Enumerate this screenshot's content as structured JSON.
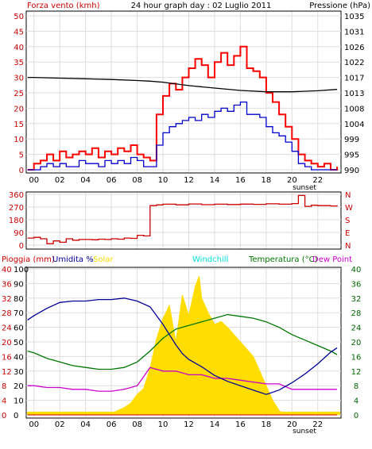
{
  "header": {
    "left_label": "Forza vento (kmh)",
    "title": "24 hour graph day : 02 Luglio 2011",
    "right_label": "Pressione (hPa)"
  },
  "colors": {
    "gust": "#ff0000",
    "wind": "#0000cc",
    "pressure": "#000000",
    "direction": "#cc0000",
    "rain": "#cc0000",
    "humidity": "#000099",
    "solar": "#ffdd00",
    "windchill": "#00dddd",
    "temperature": "#007700",
    "dewpoint": "#cc00cc",
    "axis_red": "#cc0000",
    "axis_green": "#006600",
    "grid": "#dddddd"
  },
  "x_axis": {
    "tick_labels": [
      "00",
      "02",
      "04",
      "06",
      "08",
      "10",
      "12",
      "14",
      "16",
      "18",
      "20",
      "22"
    ],
    "sunset_label": "sunset"
  },
  "chart_data": [
    {
      "type": "line",
      "name": "wind_pressure",
      "x_range": [
        -0.6,
        23.8
      ],
      "y_left": {
        "ticks": [
          "0",
          "5",
          "10",
          "15",
          "20",
          "25",
          "30",
          "35",
          "40",
          "45",
          "50"
        ],
        "range": [
          0,
          50
        ]
      },
      "y_right": {
        "ticks": [
          "990",
          "995",
          "999",
          "1004",
          "1008",
          "1013",
          "1017",
          "1022",
          "1026",
          "1031",
          "1035"
        ],
        "range": [
          990,
          1035
        ]
      },
      "series": [
        {
          "key": "gust",
          "axis": "left",
          "x": [
            -0.5,
            0,
            0.5,
            1,
            1.5,
            2,
            2.5,
            3,
            3.5,
            4,
            4.5,
            5,
            5.5,
            6,
            6.5,
            7,
            7.5,
            8,
            8.5,
            9,
            9.5,
            10,
            10.5,
            11,
            11.5,
            12,
            12.5,
            13,
            13.5,
            14,
            14.5,
            15,
            15.5,
            16,
            16.5,
            17,
            17.5,
            18,
            18.5,
            19,
            19.5,
            20,
            20.5,
            21,
            21.5,
            22,
            22.5,
            23,
            23.5
          ],
          "values": [
            0,
            2,
            3,
            5,
            3,
            6,
            4,
            5,
            6,
            5,
            7,
            4,
            6,
            5,
            7,
            6,
            8,
            5,
            4,
            3,
            18,
            24,
            28,
            26,
            30,
            33,
            36,
            34,
            30,
            35,
            38,
            34,
            37,
            40,
            33,
            32,
            30,
            25,
            22,
            18,
            14,
            10,
            5,
            3,
            2,
            1,
            2,
            0,
            1
          ]
        },
        {
          "key": "wind",
          "axis": "left",
          "x": [
            -0.5,
            0,
            0.5,
            1,
            1.5,
            2,
            2.5,
            3,
            3.5,
            4,
            4.5,
            5,
            5.5,
            6,
            6.5,
            7,
            7.5,
            8,
            8.5,
            9,
            9.5,
            10,
            10.5,
            11,
            11.5,
            12,
            12.5,
            13,
            13.5,
            14,
            14.5,
            15,
            15.5,
            16,
            16.5,
            17,
            17.5,
            18,
            18.5,
            19,
            19.5,
            20,
            20.5,
            21,
            21.5,
            22,
            22.5,
            23,
            23.5
          ],
          "values": [
            0,
            0,
            1,
            2,
            1,
            2,
            1,
            1,
            3,
            2,
            2,
            1,
            3,
            2,
            3,
            2,
            4,
            3,
            1,
            1,
            8,
            12,
            14,
            15,
            16,
            17,
            16,
            18,
            17,
            19,
            20,
            19,
            21,
            22,
            18,
            18,
            17,
            14,
            12,
            11,
            9,
            6,
            2,
            1,
            0,
            0,
            0,
            0,
            0
          ]
        },
        {
          "key": "pressure",
          "axis": "right",
          "x": [
            -0.5,
            0,
            2,
            4,
            6,
            8,
            9,
            10,
            12,
            14,
            16,
            18,
            20,
            22,
            23.5
          ],
          "values": [
            1017,
            1017,
            1016.8,
            1016.6,
            1016.4,
            1016.1,
            1015.9,
            1015.6,
            1014.6,
            1013.9,
            1013.2,
            1012.8,
            1012.8,
            1013.1,
            1013.5
          ]
        }
      ]
    },
    {
      "type": "line",
      "name": "wind_direction",
      "x_range": [
        -0.6,
        23.8
      ],
      "y_left": {
        "ticks": [
          "0",
          "90",
          "180",
          "270",
          "360"
        ],
        "range": [
          0,
          360
        ]
      },
      "y_right": {
        "ticks": [
          "N",
          "E",
          "S",
          "W",
          "N"
        ]
      },
      "series": [
        {
          "key": "direction",
          "x": [
            -0.5,
            0,
            0.5,
            1,
            1.5,
            2,
            2.5,
            3,
            3.5,
            4,
            4.5,
            5,
            5.5,
            6,
            6.5,
            7,
            7.5,
            8,
            8.5,
            9,
            9.5,
            10,
            11,
            12,
            13,
            14,
            15,
            16,
            17,
            18,
            19,
            20,
            20.5,
            21,
            21.5,
            22,
            23,
            23.5
          ],
          "values": [
            50,
            55,
            45,
            10,
            30,
            20,
            45,
            35,
            40,
            40,
            38,
            42,
            40,
            45,
            42,
            50,
            48,
            70,
            65,
            280,
            285,
            290,
            286,
            292,
            287,
            290,
            288,
            291,
            289,
            293,
            290,
            295,
            352,
            275,
            283,
            280,
            278,
            283
          ]
        }
      ]
    },
    {
      "type": "line",
      "name": "rain_humidity_solar_temperature",
      "x_range": [
        -0.6,
        23.8
      ],
      "y_left_rain": {
        "ticks": [
          "0",
          "4",
          "8",
          "12",
          "16",
          "20",
          "24",
          "28",
          "32",
          "36",
          "40"
        ],
        "range": [
          0,
          40
        ],
        "unit": "mm"
      },
      "y_left_humidity": {
        "ticks": [
          "0",
          "10",
          "20",
          "30",
          "40",
          "50",
          "60",
          "70",
          "80",
          "90",
          "100"
        ],
        "range": [
          0,
          100
        ]
      },
      "y_right": {
        "ticks": [
          "0",
          "4",
          "8",
          "12",
          "16",
          "20",
          "24",
          "28",
          "32",
          "36",
          "40"
        ],
        "range": [
          0,
          40
        ]
      },
      "legend": {
        "rain": "Pioggia (mm)",
        "humidity": "Umidita %",
        "solar": "Solar",
        "windchill": "Windchill",
        "temperature": "Temperatura (°C)",
        "dewpoint": "Dew Point"
      },
      "series": [
        {
          "key": "solar",
          "x": [
            5.5,
            6,
            6.5,
            7,
            7.5,
            8,
            8.5,
            9,
            9.5,
            10,
            10.5,
            11,
            11.5,
            12,
            12.5,
            12.8,
            13,
            13.5,
            14,
            14.5,
            15,
            15.5,
            16,
            16.5,
            17,
            17.5,
            18,
            18.5,
            19,
            19.5
          ],
          "values": [
            0,
            1,
            3,
            5,
            8,
            14,
            18,
            32,
            52,
            66,
            75,
            50,
            82,
            68,
            88,
            95,
            80,
            70,
            62,
            64,
            60,
            55,
            50,
            45,
            40,
            30,
            20,
            10,
            3,
            0
          ]
        },
        {
          "key": "humidity",
          "x": [
            -0.5,
            0,
            1,
            2,
            3,
            4,
            5,
            6,
            7,
            8,
            9,
            10,
            10.5,
            11,
            11.5,
            12,
            13,
            14,
            15,
            16,
            17,
            18,
            19,
            20,
            21,
            22,
            23,
            23.5
          ],
          "values": [
            65,
            68,
            73,
            77,
            78,
            78,
            79,
            79,
            80,
            78,
            74,
            62,
            55,
            48,
            42,
            38,
            33,
            27,
            23,
            20,
            17,
            14,
            17,
            22,
            28,
            35,
            43,
            46
          ]
        },
        {
          "key": "temperature",
          "x": [
            -0.5,
            0,
            1,
            2,
            3,
            4,
            5,
            6,
            7,
            8,
            9,
            10,
            11,
            12,
            13,
            14,
            15,
            16,
            17,
            18,
            19,
            20,
            21,
            22,
            23,
            23.5
          ],
          "values": [
            17.5,
            17,
            15.5,
            14.5,
            13.5,
            13,
            12.5,
            12.5,
            13,
            14.5,
            17.5,
            21,
            23.5,
            24.5,
            25.5,
            26.5,
            27.5,
            27,
            26.5,
            25.5,
            24,
            22,
            20.5,
            19,
            17.5,
            16.5
          ]
        },
        {
          "key": "dewpoint",
          "x": [
            -0.5,
            0,
            1,
            2,
            3,
            4,
            5,
            6,
            7,
            8,
            9,
            10,
            11,
            12,
            13,
            14,
            15,
            16,
            17,
            18,
            19,
            20,
            21,
            22,
            23,
            23.5
          ],
          "values": [
            8,
            8,
            7.5,
            7.5,
            7,
            7,
            6.5,
            6.5,
            7,
            8,
            13,
            12,
            12,
            11,
            11,
            10,
            10,
            9.5,
            9,
            8.5,
            8.5,
            7,
            7,
            7,
            7,
            7
          ]
        },
        {
          "key": "rain",
          "x": [
            -0.5,
            23.5
          ],
          "values": [
            0,
            0
          ]
        }
      ]
    }
  ]
}
